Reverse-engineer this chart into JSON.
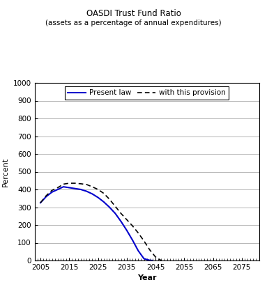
{
  "title": "OASDI Trust Fund Ratio",
  "subtitle": "(assets as a percentage of annual expenditures)",
  "xlabel": "Year",
  "ylabel": "Percent",
  "ylim": [
    0,
    1000
  ],
  "yticks": [
    0,
    100,
    200,
    300,
    400,
    500,
    600,
    700,
    800,
    900,
    1000
  ],
  "xlim": [
    2003,
    2081
  ],
  "xticks": [
    2005,
    2015,
    2025,
    2035,
    2045,
    2055,
    2065,
    2075
  ],
  "present_law_x": [
    2005,
    2007,
    2009,
    2011,
    2013,
    2015,
    2017,
    2019,
    2021,
    2023,
    2025,
    2027,
    2029,
    2031,
    2033,
    2035,
    2037,
    2039,
    2041,
    2043,
    2044
  ],
  "present_law_y": [
    325,
    360,
    385,
    400,
    415,
    410,
    405,
    400,
    390,
    375,
    355,
    330,
    300,
    265,
    220,
    170,
    115,
    55,
    10,
    1,
    0
  ],
  "provision_x": [
    2005,
    2007,
    2009,
    2011,
    2013,
    2015,
    2017,
    2019,
    2021,
    2023,
    2025,
    2027,
    2029,
    2031,
    2033,
    2035,
    2037,
    2039,
    2041,
    2043,
    2045,
    2047
  ],
  "provision_y": [
    325,
    365,
    395,
    410,
    430,
    435,
    435,
    432,
    428,
    415,
    400,
    378,
    345,
    305,
    265,
    230,
    195,
    155,
    110,
    60,
    20,
    0
  ],
  "present_law_color": "#0000cc",
  "provision_color": "#000000",
  "bg_color": "#ffffff",
  "legend_present_law": "Present law",
  "legend_provision": "with this provision"
}
